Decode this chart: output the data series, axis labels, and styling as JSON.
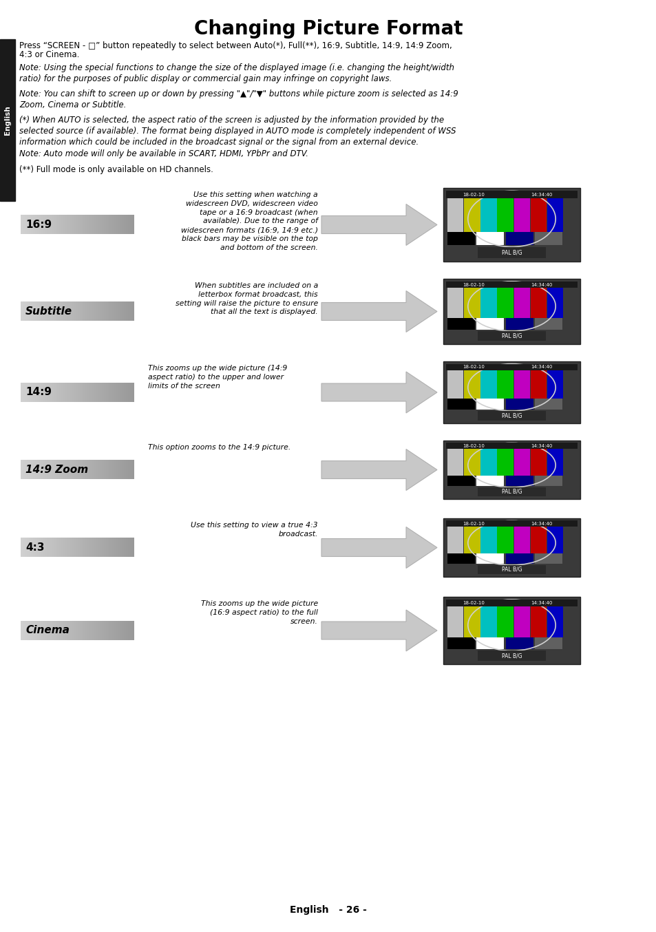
{
  "title": "Changing Picture Format",
  "page_bg": "#ffffff",
  "sidebar_color": "#1a1a1a",
  "sidebar_text": "English",
  "body_fs": 8.5,
  "rows": [
    {
      "label": "16:9",
      "label_bold": true,
      "label_italic": false,
      "description": "Use this setting when watching a\nwidescreen DVD, widescreen video\ntape or a 16:9 broadcast (when\navailable). Due to the range of\nwidescreen formats (16:9, 14:9 etc.)\nblack bars may be visible on the top\nand bottom of the screen.",
      "desc_align": "right"
    },
    {
      "label": "Subtitle",
      "label_bold": true,
      "label_italic": true,
      "description": "When subtitles are included on a\nletterbox format broadcast, this\nsetting will raise the picture to ensure\nthat all the text is displayed.",
      "desc_align": "right"
    },
    {
      "label": "14:9",
      "label_bold": true,
      "label_italic": false,
      "description": "This zooms up the wide picture (14:9\naspect ratio) to the upper and lower\nlimits of the screen",
      "desc_align": "left"
    },
    {
      "label": "14:9 Zoom",
      "label_bold": true,
      "label_italic": true,
      "description": "This option zooms to the 14:9 picture.",
      "desc_align": "left"
    },
    {
      "label": "4:3",
      "label_bold": true,
      "label_italic": false,
      "description": "Use this setting to view a true 4:3\nbroadcast.",
      "desc_align": "right"
    },
    {
      "label": "Cinema",
      "label_bold": true,
      "label_italic": true,
      "description": "This zooms up the wide picture\n(16:9 aspect ratio) to the full\nscreen.",
      "desc_align": "right"
    }
  ],
  "footer": "English   - 26 -"
}
